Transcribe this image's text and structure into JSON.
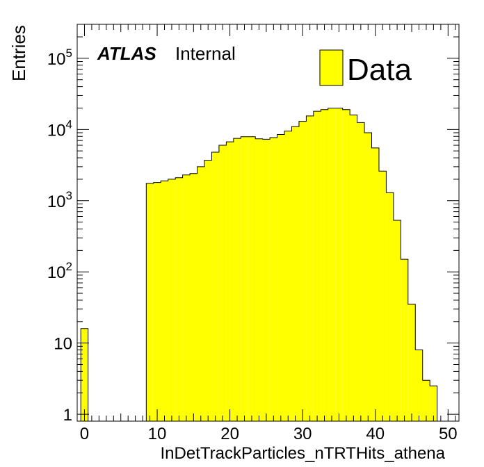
{
  "chart_data": {
    "type": "bar",
    "xlabel": "InDetTrackParticles_nTRTHits_athena",
    "ylabel": "Entries",
    "xlim": [
      -1,
      51.5
    ],
    "ylim": [
      0.8,
      300000
    ],
    "log_y": true,
    "grid": false,
    "legend_position": "top-right",
    "bar_color": "#ffff00",
    "x_ticks": [
      0,
      10,
      20,
      30,
      40,
      50
    ],
    "y_ticks": [
      {
        "value": 1,
        "base": "1",
        "exp": ""
      },
      {
        "value": 10,
        "base": "10",
        "exp": ""
      },
      {
        "value": 100,
        "base": "10",
        "exp": "2"
      },
      {
        "value": 1000,
        "base": "10",
        "exp": "3"
      },
      {
        "value": 10000,
        "base": "10",
        "exp": "4"
      },
      {
        "value": 100000,
        "base": "10",
        "exp": "5"
      }
    ],
    "series": [
      {
        "name": "Data",
        "bin_width": 1,
        "bins": [
          [
            -0.5,
            16
          ],
          [
            8.5,
            1750
          ],
          [
            9.5,
            1800
          ],
          [
            10.5,
            1900
          ],
          [
            11.5,
            2000
          ],
          [
            12.5,
            2100
          ],
          [
            13.5,
            2300
          ],
          [
            14.5,
            2400
          ],
          [
            15.5,
            3000
          ],
          [
            16.5,
            3700
          ],
          [
            17.5,
            4800
          ],
          [
            18.5,
            6000
          ],
          [
            19.5,
            6700
          ],
          [
            20.5,
            7500
          ],
          [
            21.5,
            7900
          ],
          [
            22.5,
            7900
          ],
          [
            23.5,
            7400
          ],
          [
            24.5,
            7300
          ],
          [
            25.5,
            7700
          ],
          [
            26.5,
            8500
          ],
          [
            27.5,
            9500
          ],
          [
            28.5,
            11000
          ],
          [
            29.5,
            13000
          ],
          [
            30.5,
            15500
          ],
          [
            31.5,
            18000
          ],
          [
            32.5,
            19000
          ],
          [
            33.5,
            20000
          ],
          [
            34.5,
            20000
          ],
          [
            35.5,
            19000
          ],
          [
            36.5,
            16000
          ],
          [
            37.5,
            12500
          ],
          [
            38.5,
            9000
          ],
          [
            39.5,
            5500
          ],
          [
            40.5,
            2600
          ],
          [
            41.5,
            1300
          ],
          [
            42.5,
            530
          ],
          [
            43.5,
            150
          ],
          [
            44.5,
            35
          ],
          [
            45.5,
            8
          ],
          [
            46.5,
            3.0
          ],
          [
            47.5,
            2.5
          ]
        ]
      }
    ]
  },
  "label": {
    "atlas": "ATLAS",
    "status": "Internal"
  }
}
